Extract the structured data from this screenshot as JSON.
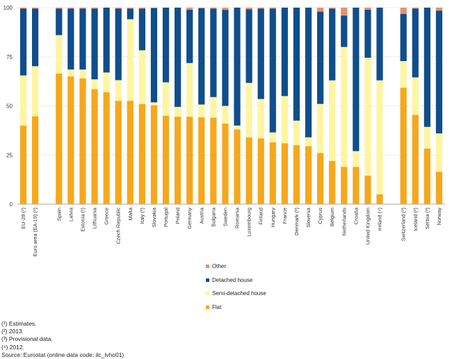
{
  "chart_data": {
    "type": "bar",
    "stacked": true,
    "title": "",
    "xlabel": "",
    "ylabel": "",
    "ylim": [
      0,
      100
    ],
    "yticks": [
      "0",
      "25",
      "50",
      "75",
      "100"
    ],
    "grid": true,
    "categories": [
      "EU-28 (¹)",
      "Euro area (EA-19) (¹)",
      "",
      "Spain",
      "Latvia",
      "Estonia (²)",
      "Lithuania",
      "Greece",
      "Czech Republic",
      "Malta",
      "Italy (³)",
      "Slovakia",
      "Portugal",
      "Poland",
      "Germany",
      "Austria",
      "Bulgaria",
      "Sweden",
      "Romania",
      "Luxembourg",
      "Finland",
      "Hungary",
      "France",
      "Denmark (³)",
      "Slovenia",
      "Cyprus",
      "Belgium",
      "Netherlands",
      "Croatia",
      "United Kingdom",
      "Ireland (⁴)",
      "",
      "Switzerland (³)",
      "Iceland (³)",
      "Serbia (³)",
      "Norway"
    ],
    "series": [
      {
        "name": "Flat",
        "color": "#f5a81c",
        "values": [
          40,
          44.7,
          null,
          66.5,
          65,
          64,
          58.5,
          57,
          52.6,
          52.6,
          51,
          50.3,
          45,
          44.5,
          44.5,
          44.2,
          44,
          41,
          38,
          34,
          33.5,
          31.5,
          31,
          30,
          29.5,
          26,
          22,
          19,
          19,
          14.5,
          5,
          null,
          59.3,
          45.5,
          28.3,
          16.5
        ]
      },
      {
        "name": "Semi-detached house",
        "color": "#fef5a2",
        "values": [
          25.5,
          25.5,
          null,
          19.5,
          3.5,
          4.5,
          5,
          10,
          10.5,
          41.5,
          27.3,
          1.5,
          17,
          5,
          27.3,
          6.5,
          10.5,
          9,
          2,
          27.7,
          20,
          5,
          24,
          12.5,
          4.5,
          25,
          41,
          61,
          8,
          60,
          58,
          null,
          13.5,
          19,
          11,
          19.5
        ]
      },
      {
        "name": "Detached house",
        "color": "#104e8b",
        "values": [
          34,
          29.3,
          null,
          13.5,
          31,
          31,
          36,
          33,
          36.4,
          5.4,
          21.2,
          48,
          38,
          50.5,
          27.2,
          49,
          45,
          48.9,
          60,
          37.5,
          46,
          63,
          45,
          57.5,
          66,
          47,
          36.5,
          16,
          73,
          24.5,
          37,
          null,
          24,
          35,
          60.7,
          62.5
        ]
      },
      {
        "name": "Other",
        "color": "#e8906e",
        "values": [
          0.5,
          0.5,
          null,
          0.5,
          0.5,
          0.5,
          0.5,
          0,
          0.5,
          0.5,
          0.5,
          0.2,
          0,
          0,
          1,
          0.3,
          0.5,
          1.1,
          0,
          0.8,
          0.5,
          0.5,
          0,
          0,
          0,
          2,
          0.5,
          4,
          0,
          1,
          0,
          null,
          3.2,
          0.5,
          0,
          1.5
        ]
      }
    ],
    "legend": [
      "Other",
      "Detached house",
      "Semi-detached house",
      "Flat"
    ],
    "legend_position": "bottom-center"
  },
  "notes": [
    "(¹) Estimates.",
    "(²) 2013.",
    "(³) Provisional data.",
    "(⁴) 2012."
  ],
  "source": {
    "label": "Source:",
    "text": "Eurostat (online data code: ilc_lvho01)"
  }
}
